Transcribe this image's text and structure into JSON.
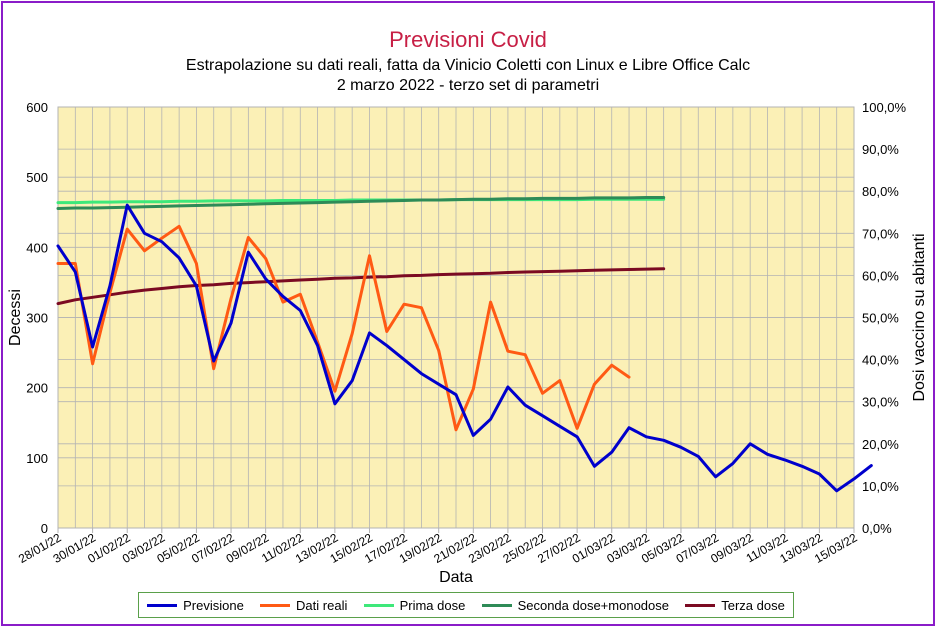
{
  "title": "Previsioni Covid",
  "subtitle": "Estrapolazione su dati reali, fatta da Vinicio Coletti con Linux e Libre Office Calc",
  "subtitle2": "2 marzo 2022 - terzo set di parametri",
  "chart_data": {
    "type": "line",
    "xlabel": "Data",
    "ylabel": "Decessi",
    "y2label": "Dosi vaccino su abitanti",
    "ylim": [
      0,
      600
    ],
    "y2lim": [
      0,
      100
    ],
    "yticks": [
      "0",
      "100",
      "200",
      "300",
      "400",
      "500",
      "600"
    ],
    "y2ticks": [
      "0,0%",
      "10,0%",
      "20,0%",
      "30,0%",
      "40,0%",
      "50,0%",
      "60,0%",
      "70,0%",
      "80,0%",
      "90,0%",
      "100,0%"
    ],
    "x_tick_labels": [
      "28/01/22",
      "30/01/22",
      "01/02/22",
      "03/02/22",
      "05/02/22",
      "07/02/22",
      "09/02/22",
      "11/02/22",
      "13/02/22",
      "15/02/22",
      "17/02/22",
      "19/02/22",
      "21/02/22",
      "23/02/22",
      "25/02/22",
      "27/02/22",
      "01/03/22",
      "03/03/22",
      "05/03/22",
      "07/03/22",
      "09/03/22",
      "11/03/22",
      "13/03/22",
      "15/03/22"
    ],
    "x_start": "2022-01-28",
    "grid": true,
    "legend_position": "bottom",
    "series": [
      {
        "name": "Previsione",
        "axis": "left",
        "color": "#0000cc",
        "values": [
          402,
          365,
          258,
          345,
          460,
          420,
          408,
          385,
          345,
          238,
          292,
          393,
          355,
          330,
          310,
          260,
          177,
          210,
          278,
          260,
          240,
          220,
          205,
          190,
          132,
          155,
          201,
          175,
          160,
          145,
          130,
          88,
          108,
          143,
          130,
          125,
          115,
          102,
          73,
          92,
          120,
          105,
          97,
          88,
          77,
          53,
          70,
          89
        ]
      },
      {
        "name": "Dati reali",
        "axis": "left",
        "color": "#ff5a14",
        "values": [
          377,
          377,
          234,
          335,
          426,
          395,
          413,
          430,
          377,
          227,
          327,
          414,
          384,
          322,
          333,
          265,
          195,
          277,
          388,
          280,
          319,
          314,
          253,
          140,
          198,
          322,
          252,
          247,
          192,
          210,
          142,
          205,
          232,
          215
        ]
      },
      {
        "name": "Prima dose",
        "axis": "right",
        "color": "#3ee87a",
        "values": [
          77.3,
          77.3,
          77.4,
          77.4,
          77.5,
          77.5,
          77.5,
          77.6,
          77.6,
          77.7,
          77.7,
          77.7,
          77.7,
          77.8,
          77.8,
          77.8,
          77.8,
          77.9,
          77.9,
          77.9,
          77.9,
          77.9,
          77.9,
          78.0,
          78.0,
          78.0,
          78.0,
          78.0,
          78.0,
          78.0,
          78.0,
          78.1,
          78.1,
          78.1,
          78.1,
          78.1
        ]
      },
      {
        "name": "Seconda dose+monodose",
        "axis": "right",
        "color": "#2e8b57",
        "values": [
          75.9,
          76.0,
          76.0,
          76.1,
          76.2,
          76.3,
          76.4,
          76.5,
          76.6,
          76.7,
          76.8,
          76.9,
          77.0,
          77.1,
          77.2,
          77.3,
          77.4,
          77.5,
          77.6,
          77.7,
          77.8,
          77.9,
          77.9,
          78.0,
          78.1,
          78.1,
          78.2,
          78.2,
          78.3,
          78.3,
          78.3,
          78.4,
          78.4,
          78.4,
          78.5,
          78.5
        ]
      },
      {
        "name": "Terza dose",
        "axis": "right",
        "color": "#7b0a22",
        "values": [
          53.3,
          54.2,
          54.8,
          55.4,
          56.0,
          56.5,
          56.9,
          57.3,
          57.6,
          57.8,
          58.1,
          58.3,
          58.5,
          58.7,
          58.9,
          59.1,
          59.3,
          59.4,
          59.6,
          59.7,
          59.9,
          60.0,
          60.2,
          60.3,
          60.4,
          60.5,
          60.7,
          60.8,
          60.9,
          61.0,
          61.1,
          61.2,
          61.3,
          61.4,
          61.5,
          61.6
        ]
      }
    ]
  }
}
